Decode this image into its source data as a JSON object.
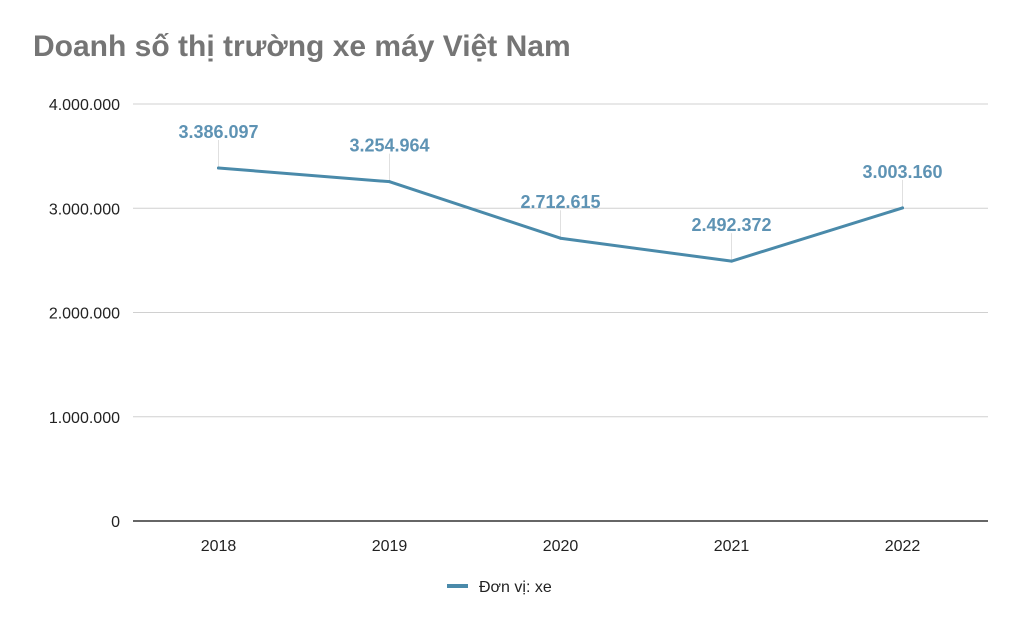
{
  "chart_data": {
    "type": "line",
    "title": "Doanh số thị trường xe máy Việt Nam",
    "categories": [
      "2018",
      "2019",
      "2020",
      "2021",
      "2022"
    ],
    "series": [
      {
        "name": "Đơn vị: xe",
        "values": [
          3386097,
          3254964,
          2712615,
          2492372,
          3003160
        ],
        "labels": [
          "3.386.097",
          "3.254.964",
          "2.712.615",
          "2.492.372",
          "3.003.160"
        ]
      }
    ],
    "y_ticks": [
      "0",
      "1.000.000",
      "2.000.000",
      "3.000.000",
      "4.000.000"
    ],
    "ylim": [
      0,
      4000000
    ],
    "grid": true,
    "legend_position": "bottom",
    "colors": {
      "series": "#4a8aaa",
      "label": "#5e93b4",
      "grid": "#d0d0d0",
      "axis": "#333333",
      "title": "#757575"
    }
  }
}
